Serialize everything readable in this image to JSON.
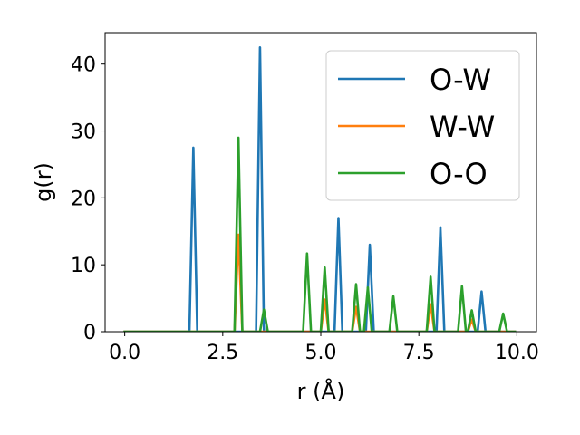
{
  "chart_data": {
    "type": "line",
    "title": "",
    "xlabel": "r (Å)",
    "ylabel": "g(r)",
    "xlim": [
      -0.5,
      10.5
    ],
    "ylim": [
      0,
      44.7
    ],
    "xticks": [
      0.0,
      2.5,
      5.0,
      7.5,
      10.0
    ],
    "xtick_labels": [
      "0.0",
      "2.5",
      "5.0",
      "7.5",
      "10.0"
    ],
    "yticks": [
      0,
      10,
      20,
      30,
      40
    ],
    "ytick_labels": [
      "0",
      "10",
      "20",
      "30",
      "40"
    ],
    "grid": false,
    "legend_position": "upper right",
    "series": [
      {
        "name": "O-W",
        "color": "#1f77b4",
        "x": [
          0.0,
          1.65,
          1.75,
          1.85,
          3.35,
          3.45,
          3.55,
          5.35,
          5.45,
          5.55,
          6.15,
          6.25,
          6.35,
          7.95,
          8.05,
          8.15,
          9.0,
          9.1,
          9.2,
          9.95
        ],
        "y": [
          0,
          0,
          27.5,
          0,
          0,
          42.5,
          0,
          0,
          17.0,
          0,
          0,
          13.0,
          0,
          0,
          15.6,
          0,
          0,
          6.0,
          0,
          0
        ]
      },
      {
        "name": "W-W",
        "color": "#ff7f0e",
        "x": [
          0.0,
          2.8,
          2.9,
          3.0,
          5.0,
          5.1,
          5.2,
          5.8,
          5.9,
          6.0,
          7.7,
          7.8,
          7.9,
          8.75,
          8.85,
          8.95,
          9.95
        ],
        "y": [
          0,
          0,
          14.5,
          0,
          0,
          4.8,
          0,
          0,
          3.7,
          0,
          0,
          4.1,
          0,
          0,
          1.8,
          0,
          0
        ]
      },
      {
        "name": "O-O",
        "color": "#2ca02c",
        "x": [
          0.0,
          2.8,
          2.9,
          3.0,
          3.45,
          3.55,
          3.65,
          4.55,
          4.65,
          4.75,
          5.0,
          5.1,
          5.2,
          5.8,
          5.9,
          6.0,
          6.1,
          6.2,
          6.3,
          6.75,
          6.85,
          6.95,
          7.7,
          7.8,
          7.9,
          8.5,
          8.6,
          8.7,
          8.75,
          8.85,
          8.95,
          9.55,
          9.65,
          9.75,
          9.95
        ],
        "y": [
          0,
          0,
          29.0,
          0,
          0,
          3.3,
          0,
          0,
          11.7,
          0,
          0,
          9.6,
          0,
          0,
          7.1,
          0,
          0,
          6.6,
          0,
          0,
          5.3,
          0,
          0,
          8.2,
          0,
          0,
          6.8,
          0,
          0,
          3.2,
          0,
          0,
          2.7,
          0,
          0
        ]
      }
    ]
  }
}
